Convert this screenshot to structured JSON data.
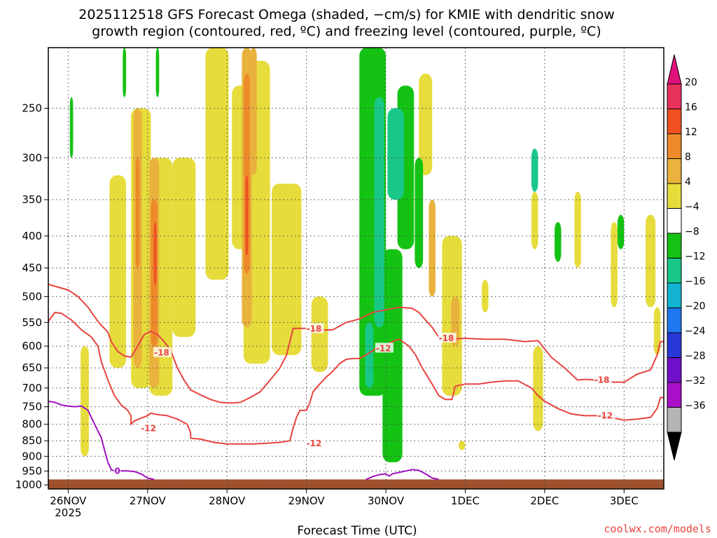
{
  "chart_data": {
    "type": "heatmap",
    "title_lines": [
      "2025112518 GFS Forecast Omega (shaded, −cm/s) for KMIE with dendritic snow",
      "growth region (contoured, red, ºC) and freezing level (contoured, purple, ºC)"
    ],
    "xlabel": "Forecast Time (UTC)",
    "credit": "coolwx.com/models",
    "x_ticks": [
      {
        "t": 0,
        "label": "26NOV"
      },
      {
        "t": 24,
        "label": "27NOV"
      },
      {
        "t": 48,
        "label": "28NOV"
      },
      {
        "t": 72,
        "label": "29NOV"
      },
      {
        "t": 96,
        "label": "30NOV"
      },
      {
        "t": 120,
        "label": "1DEC"
      },
      {
        "t": 144,
        "label": "2DEC"
      },
      {
        "t": 168,
        "label": "3DEC"
      }
    ],
    "x_year_label": "2025",
    "xlim_hours": [
      -6,
      180
    ],
    "y_levels_hpa": [
      250,
      300,
      350,
      400,
      450,
      500,
      550,
      600,
      650,
      700,
      750,
      800,
      850,
      900,
      950,
      1000
    ],
    "ylim_hpa": [
      200,
      1015
    ],
    "y_scale": "log",
    "surface_pressure_hpa": 980,
    "grid": true,
    "colorbar": {
      "labels": [
        "20",
        "16",
        "12",
        "8",
        "4",
        "−4",
        "−8",
        "−12",
        "−16",
        "−20",
        "−24",
        "−28",
        "−32",
        "−36"
      ],
      "colors": [
        "#e8325e",
        "#f05020",
        "#ee8a2a",
        "#e8b23c",
        "#e6dc3c",
        "#ffffff",
        "#14c214",
        "#18c888",
        "#12b4d2",
        "#1e78f0",
        "#2838d8",
        "#7010c8",
        "#a810c8",
        "#b4b4b4"
      ],
      "top_color": "#e0107a",
      "bottom_color": "#000000"
    },
    "omega_fields": [
      {
        "color": "#e6dc3c",
        "t": 5,
        "p": [
          600,
          900
        ],
        "w": 2.5
      },
      {
        "color": "#e6dc3c",
        "t": 15,
        "p": [
          320,
          650
        ],
        "w": 5
      },
      {
        "color": "#e6dc3c",
        "t": 22,
        "p": [
          250,
          700
        ],
        "w": 6
      },
      {
        "color": "#e6dc3c",
        "t": 28,
        "p": [
          300,
          720
        ],
        "w": 7
      },
      {
        "color": "#e6dc3c",
        "t": 35,
        "p": [
          300,
          580
        ],
        "w": 7
      },
      {
        "color": "#e6dc3c",
        "t": 45,
        "p": [
          200,
          470
        ],
        "w": 7
      },
      {
        "color": "#e6dc3c",
        "t": 52,
        "p": [
          230,
          420
        ],
        "w": 5
      },
      {
        "color": "#e6dc3c",
        "t": 57,
        "p": [
          210,
          640
        ],
        "w": 8
      },
      {
        "color": "#e6dc3c",
        "t": 66,
        "p": [
          330,
          620
        ],
        "w": 9
      },
      {
        "color": "#e6dc3c",
        "t": 76,
        "p": [
          500,
          660
        ],
        "w": 5
      },
      {
        "color": "#e6dc3c",
        "t": 108,
        "p": [
          220,
          320
        ],
        "w": 4
      },
      {
        "color": "#e6dc3c",
        "t": 116,
        "p": [
          400,
          720
        ],
        "w": 6
      },
      {
        "color": "#e6dc3c",
        "t": 119,
        "p": [
          850,
          880
        ],
        "w": 2
      },
      {
        "color": "#e6dc3c",
        "t": 126,
        "p": [
          470,
          530
        ],
        "w": 2
      },
      {
        "color": "#e6dc3c",
        "t": 142,
        "p": [
          600,
          820
        ],
        "w": 3
      },
      {
        "color": "#e6dc3c",
        "t": 141,
        "p": [
          340,
          420
        ],
        "w": 2
      },
      {
        "color": "#e6dc3c",
        "t": 154,
        "p": [
          340,
          450
        ],
        "w": 2
      },
      {
        "color": "#e6dc3c",
        "t": 165,
        "p": [
          380,
          520
        ],
        "w": 2
      },
      {
        "color": "#e6dc3c",
        "t": 176,
        "p": [
          370,
          520
        ],
        "w": 3
      },
      {
        "color": "#e6dc3c",
        "t": 178,
        "p": [
          520,
          620
        ],
        "w": 2
      },
      {
        "color": "#e8b23c",
        "t": 21,
        "p": [
          250,
          650
        ],
        "w": 2.5
      },
      {
        "color": "#e8b23c",
        "t": 26,
        "p": [
          300,
          700
        ],
        "w": 3
      },
      {
        "color": "#e8b23c",
        "t": 54,
        "p": [
          200,
          560
        ],
        "w": 3
      },
      {
        "color": "#e8b23c",
        "t": 56,
        "p": [
          200,
          320
        ],
        "w": 2
      },
      {
        "color": "#e8b23c",
        "t": 110,
        "p": [
          350,
          500
        ],
        "w": 2
      },
      {
        "color": "#e8b23c",
        "t": 117,
        "p": [
          500,
          600
        ],
        "w": 2.5
      },
      {
        "color": "#ee8a2a",
        "t": 21,
        "p": [
          300,
          450
        ],
        "w": 1.2
      },
      {
        "color": "#ee8a2a",
        "t": 26,
        "p": [
          350,
          600
        ],
        "w": 2
      },
      {
        "color": "#ee8a2a",
        "t": 54,
        "p": [
          220,
          460
        ],
        "w": 1.8
      },
      {
        "color": "#f05020",
        "t": 26.3,
        "p": [
          380,
          480
        ],
        "w": 0.8
      },
      {
        "color": "#f05020",
        "t": 54,
        "p": [
          320,
          430
        ],
        "w": 0.8
      },
      {
        "color": "#14c214",
        "t": 1,
        "p": [
          240,
          300
        ],
        "w": 1
      },
      {
        "color": "#14c214",
        "t": 17,
        "p": [
          200,
          240
        ],
        "w": 1
      },
      {
        "color": "#14c214",
        "t": 27,
        "p": [
          200,
          240
        ],
        "w": 1
      },
      {
        "color": "#14c214",
        "t": 92,
        "p": [
          200,
          720
        ],
        "w": 8
      },
      {
        "color": "#14c214",
        "t": 98,
        "p": [
          420,
          920
        ],
        "w": 6
      },
      {
        "color": "#14c214",
        "t": 102,
        "p": [
          230,
          420
        ],
        "w": 5
      },
      {
        "color": "#14c214",
        "t": 106,
        "p": [
          300,
          450
        ],
        "w": 2.5
      },
      {
        "color": "#14c214",
        "t": 148,
        "p": [
          380,
          440
        ],
        "w": 2
      },
      {
        "color": "#14c214",
        "t": 167,
        "p": [
          370,
          420
        ],
        "w": 2
      },
      {
        "color": "#18c888",
        "t": 94,
        "p": [
          240,
          560
        ],
        "w": 3
      },
      {
        "color": "#18c888",
        "t": 99,
        "p": [
          250,
          350
        ],
        "w": 5
      },
      {
        "color": "#18c888",
        "t": 91,
        "p": [
          550,
          700
        ],
        "w": 2.5
      },
      {
        "color": "#18c888",
        "t": 141,
        "p": [
          290,
          340
        ],
        "w": 2
      }
    ],
    "contours": [
      {
        "label": "-18",
        "color": "#e8433e",
        "label_points": [
          {
            "t": 26,
            "p": 615
          },
          {
            "t": 72,
            "p": 563
          },
          {
            "t": 112,
            "p": 583
          },
          {
            "t": 159,
            "p": 680
          }
        ],
        "points": [
          [
            -6,
            478
          ],
          [
            0,
            488
          ],
          [
            3,
            500
          ],
          [
            6,
            520
          ],
          [
            9,
            548
          ],
          [
            12,
            570
          ],
          [
            13,
            590
          ],
          [
            15,
            612
          ],
          [
            17,
            622
          ],
          [
            19,
            625
          ],
          [
            21,
            600
          ],
          [
            23,
            575
          ],
          [
            25,
            568
          ],
          [
            27,
            575
          ],
          [
            29,
            590
          ],
          [
            31,
            610
          ],
          [
            33,
            650
          ],
          [
            35,
            680
          ],
          [
            37,
            705
          ],
          [
            40,
            718
          ],
          [
            43,
            730
          ],
          [
            46,
            738
          ],
          [
            49,
            740
          ],
          [
            52,
            738
          ],
          [
            55,
            725
          ],
          [
            58,
            710
          ],
          [
            60,
            690
          ],
          [
            62,
            670
          ],
          [
            64,
            650
          ],
          [
            66,
            620
          ],
          [
            67,
            590
          ],
          [
            68,
            562
          ],
          [
            72,
            562
          ],
          [
            76,
            566
          ],
          [
            80,
            565
          ],
          [
            84,
            550
          ],
          [
            88,
            543
          ],
          [
            92,
            530
          ],
          [
            96,
            525
          ],
          [
            100,
            520
          ],
          [
            104,
            522
          ],
          [
            106,
            530
          ],
          [
            108,
            545
          ],
          [
            110,
            560
          ],
          [
            112,
            580
          ],
          [
            114,
            585
          ],
          [
            120,
            583
          ],
          [
            126,
            585
          ],
          [
            132,
            585
          ],
          [
            138,
            590
          ],
          [
            142,
            588
          ],
          [
            146,
            625
          ],
          [
            150,
            650
          ],
          [
            154,
            680
          ],
          [
            156,
            678
          ],
          [
            160,
            680
          ],
          [
            164,
            685
          ],
          [
            168,
            685
          ],
          [
            172,
            665
          ],
          [
            176,
            655
          ],
          [
            178,
            620
          ],
          [
            179,
            590
          ],
          [
            180,
            590
          ]
        ]
      },
      {
        "label": "-12",
        "color": "#e8433e",
        "label_points": [
          {
            "t": 22,
            "p": 812
          },
          {
            "t": 72,
            "p": 858
          },
          {
            "t": 93,
            "p": 605
          },
          {
            "t": 160,
            "p": 775
          }
        ],
        "points": [
          [
            -6,
            548
          ],
          [
            -4,
            530
          ],
          [
            -2,
            532
          ],
          [
            1,
            545
          ],
          [
            4,
            565
          ],
          [
            7,
            580
          ],
          [
            9,
            600
          ],
          [
            10,
            635
          ],
          [
            12,
            680
          ],
          [
            14,
            720
          ],
          [
            16,
            745
          ],
          [
            18,
            760
          ],
          [
            19,
            775
          ],
          [
            19,
            800
          ],
          [
            20,
            790
          ],
          [
            22,
            782
          ],
          [
            24,
            775
          ],
          [
            25,
            768
          ],
          [
            27,
            772
          ],
          [
            30,
            775
          ],
          [
            33,
            785
          ],
          [
            36,
            800
          ],
          [
            37,
            825
          ],
          [
            37,
            842
          ],
          [
            40,
            845
          ],
          [
            44,
            855
          ],
          [
            48,
            860
          ],
          [
            52,
            860
          ],
          [
            56,
            860
          ],
          [
            60,
            858
          ],
          [
            64,
            855
          ],
          [
            67,
            850
          ],
          [
            68,
            810
          ],
          [
            69,
            780
          ],
          [
            70,
            760
          ],
          [
            72,
            760
          ],
          [
            73,
            740
          ],
          [
            74,
            710
          ],
          [
            76,
            690
          ],
          [
            78,
            672
          ],
          [
            80,
            658
          ],
          [
            82,
            640
          ],
          [
            84,
            630
          ],
          [
            86,
            628
          ],
          [
            88,
            628
          ],
          [
            90,
            620
          ],
          [
            93,
            605
          ],
          [
            96,
            598
          ],
          [
            98,
            590
          ],
          [
            100,
            585
          ],
          [
            103,
            600
          ],
          [
            105,
            620
          ],
          [
            107,
            650
          ],
          [
            110,
            690
          ],
          [
            112,
            720
          ],
          [
            114,
            730
          ],
          [
            116,
            730
          ],
          [
            117,
            695
          ],
          [
            120,
            690
          ],
          [
            124,
            690
          ],
          [
            128,
            685
          ],
          [
            132,
            682
          ],
          [
            136,
            682
          ],
          [
            140,
            700
          ],
          [
            142,
            720
          ],
          [
            144,
            735
          ],
          [
            148,
            755
          ],
          [
            152,
            770
          ],
          [
            156,
            775
          ],
          [
            160,
            775
          ],
          [
            164,
            780
          ],
          [
            168,
            788
          ],
          [
            172,
            785
          ],
          [
            176,
            780
          ],
          [
            178,
            755
          ],
          [
            179,
            725
          ],
          [
            180,
            725
          ]
        ]
      },
      {
        "label": "0",
        "color": "#a010c0",
        "label_points": [
          {
            "t": 14,
            "p": 950
          }
        ],
        "points": [
          [
            -6,
            735
          ],
          [
            -4,
            738
          ],
          [
            -2,
            745
          ],
          [
            0,
            748
          ],
          [
            2,
            750
          ],
          [
            4,
            748
          ],
          [
            6,
            760
          ],
          [
            7,
            780
          ],
          [
            8,
            800
          ],
          [
            9,
            820
          ],
          [
            10,
            840
          ],
          [
            11,
            880
          ],
          [
            12,
            920
          ],
          [
            13,
            945
          ],
          [
            14,
            950
          ],
          [
            16,
            950
          ],
          [
            18,
            950
          ],
          [
            20,
            952
          ],
          [
            22,
            960
          ],
          [
            24,
            975
          ],
          [
            26,
            980
          ]
        ]
      },
      {
        "label": "",
        "color": "#a010c0",
        "label_points": [],
        "points": [
          [
            90,
            980
          ],
          [
            92,
            970
          ],
          [
            94,
            963
          ],
          [
            96,
            960
          ],
          [
            97,
            968
          ],
          [
            98,
            960
          ],
          [
            100,
            955
          ],
          [
            102,
            950
          ],
          [
            104,
            945
          ],
          [
            106,
            948
          ],
          [
            108,
            960
          ],
          [
            110,
            975
          ],
          [
            112,
            980
          ]
        ]
      }
    ]
  }
}
